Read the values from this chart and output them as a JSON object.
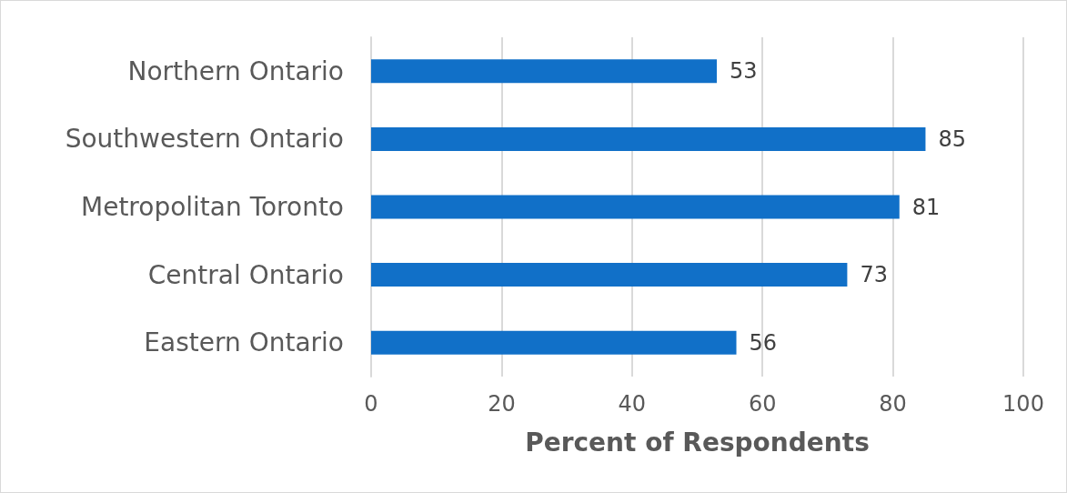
{
  "chart_data": {
    "type": "bar",
    "orientation": "horizontal",
    "xlabel": "Percent of Respondents",
    "categories": [
      "Northern Ontario",
      "Southwestern Ontario",
      "Metropolitan Toronto",
      "Central Ontario",
      "Eastern Ontario"
    ],
    "values": [
      53,
      85,
      81,
      73,
      56
    ],
    "color": "#1170c8",
    "xlim": [
      0,
      100
    ],
    "xticks": [
      0,
      20,
      40,
      60,
      80,
      100
    ],
    "grid": "x",
    "data_labels": true
  }
}
